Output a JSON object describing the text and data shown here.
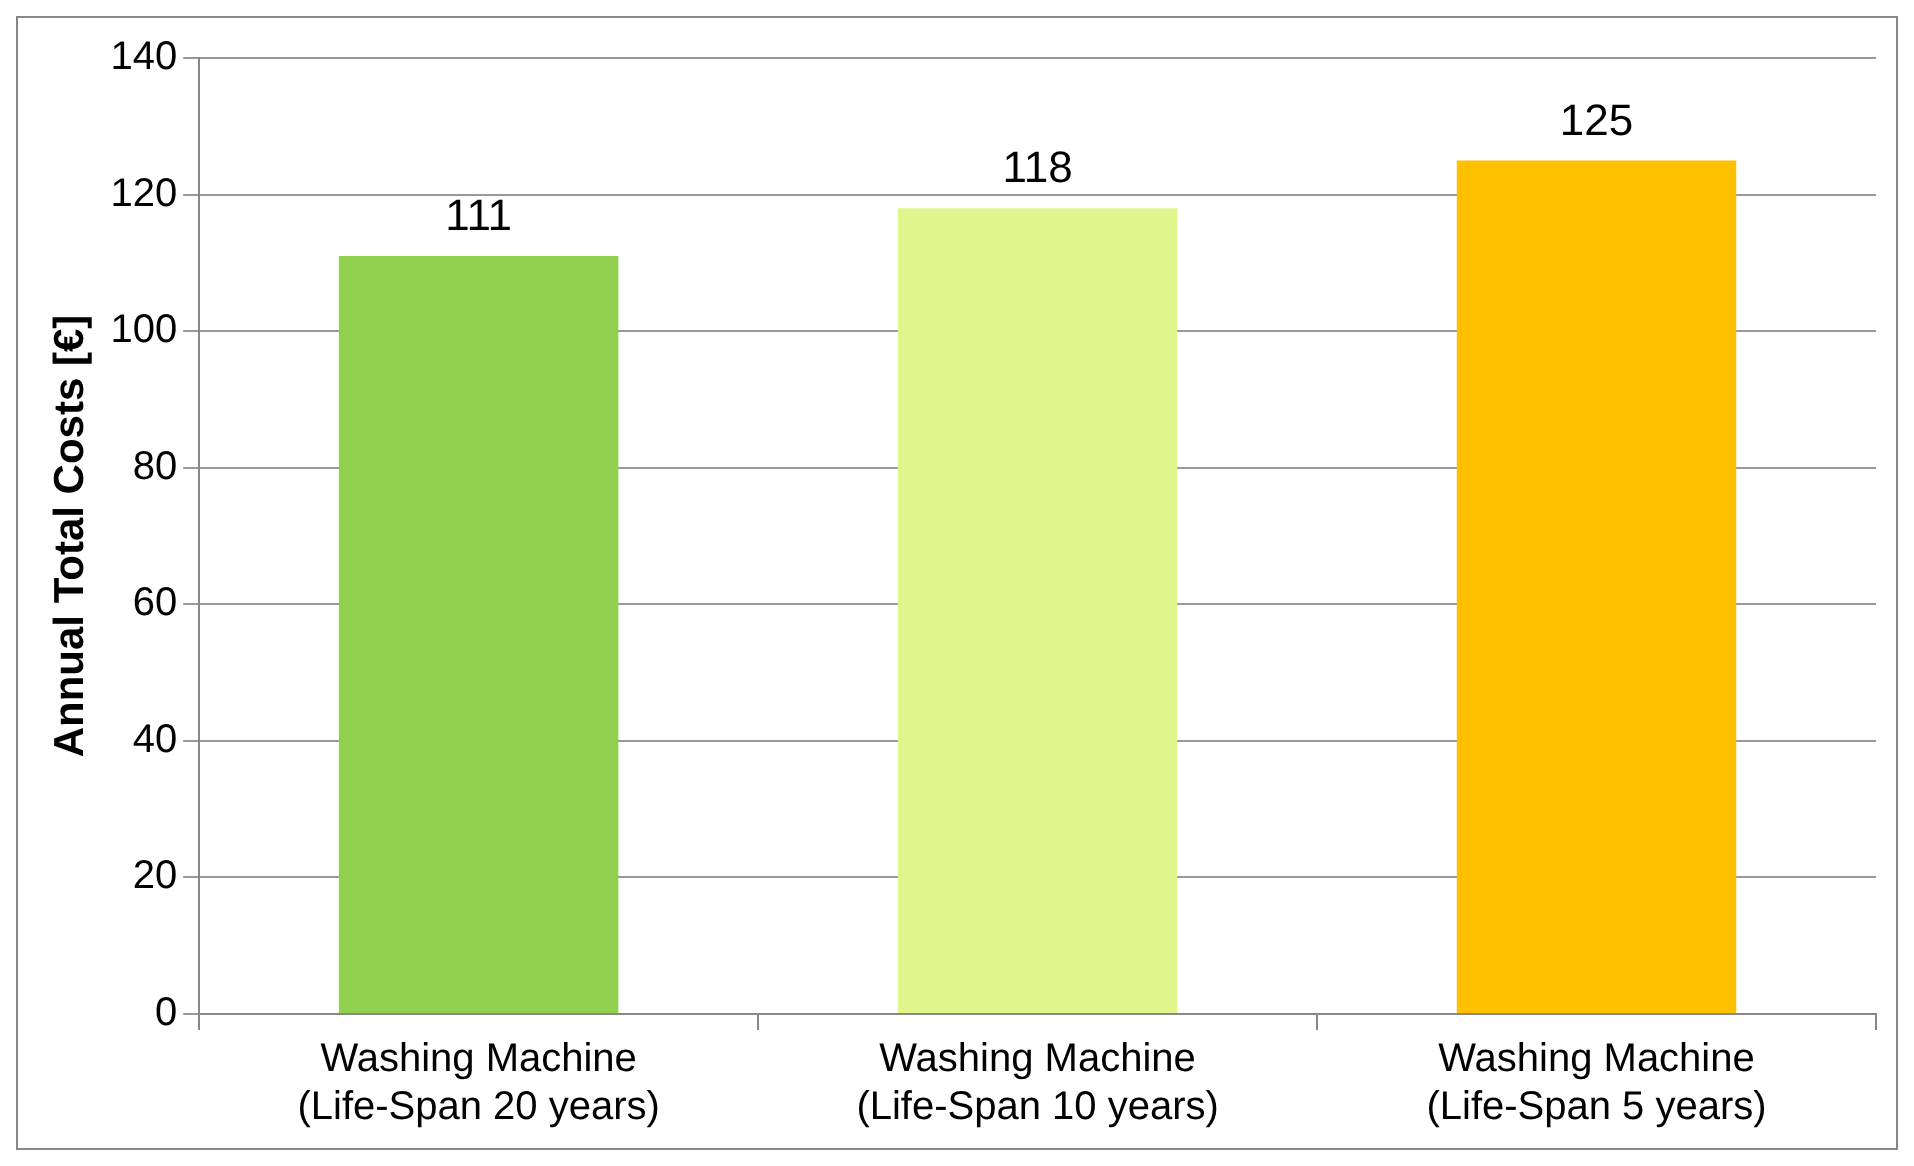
{
  "chart_data": {
    "type": "bar",
    "ylabel": "Annual Total Costs [€]",
    "categories": [
      "Washing Machine\n(Life-Span 20 years)",
      "Washing Machine\n(Life-Span 10 years)",
      "Washing Machine\n(Life-Span 5 years)"
    ],
    "values": [
      111,
      118,
      125
    ],
    "colors": [
      "#92d050",
      "#e0f58c",
      "#ffc000"
    ],
    "ylim": [
      0,
      140
    ],
    "yticks": [
      0,
      20,
      40,
      60,
      80,
      100,
      120,
      140
    ],
    "grid": "y",
    "data_labels": true,
    "legend": false
  }
}
